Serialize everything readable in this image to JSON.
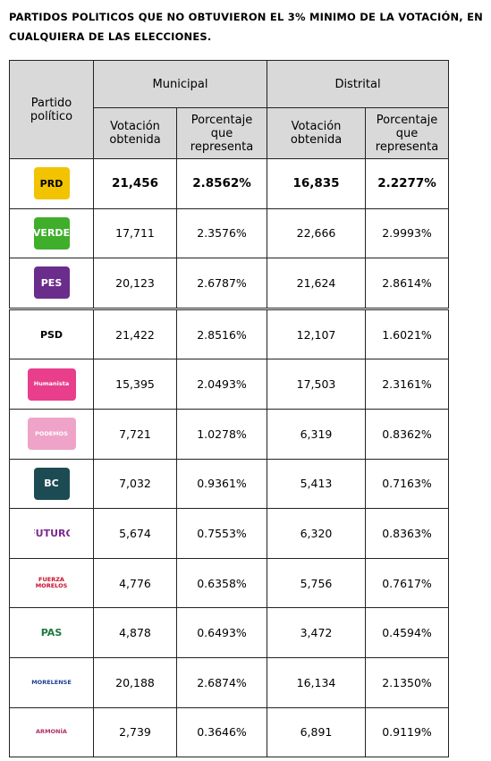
{
  "header": {
    "title": "PARTIDOS POLITICOS QUE NO OBTUVIERON EL 3% MINIMO DE LA VOTACIÓN, EN CUALQUIERA DE LAS ELECCIONES."
  },
  "table": {
    "party_header": "Partido político",
    "groups": [
      {
        "label": "Municipal",
        "sub": [
          "Votación obtenida",
          "Porcentaje que representa"
        ]
      },
      {
        "label": "Distrital",
        "sub": [
          "Votación obtenida",
          "Porcentaje que representa"
        ]
      }
    ],
    "rows": [
      {
        "logo": {
          "text": "PRD",
          "bg": "#f2c300",
          "fg": "#000000"
        },
        "emphasis": true,
        "cells": [
          "21,456",
          "2.8562%",
          "16,835",
          "2.2277%"
        ]
      },
      {
        "logo": {
          "text": "VERDE",
          "bg": "#3fae2a",
          "fg": "#ffffff"
        },
        "cells": [
          "17,711",
          "2.3576%",
          "22,666",
          "2.9993%"
        ]
      },
      {
        "logo": {
          "text": "PES",
          "bg": "#6b2d8c",
          "fg": "#ffffff"
        },
        "cells": [
          "20,123",
          "2.6787%",
          "21,624",
          "2.8614%"
        ]
      },
      {
        "logo": {
          "text": "PSD",
          "bg": "#ffffff",
          "fg": "#000000"
        },
        "cells": [
          "21,422",
          "2.8516%",
          "12,107",
          "1.6021%"
        ]
      },
      {
        "logo": {
          "text": "Humanista",
          "bg": "#e83e8c",
          "fg": "#ffffff"
        },
        "cells": [
          "15,395",
          "2.0493%",
          "17,503",
          "2.3161%"
        ]
      },
      {
        "logo": {
          "text": "PODEMOS",
          "bg": "#f0a3c8",
          "fg": "#ffffff"
        },
        "cells": [
          "7,721",
          "1.0278%",
          "6,319",
          "0.8362%"
        ]
      },
      {
        "logo": {
          "text": "BC",
          "bg": "#1d4b53",
          "fg": "#ffffff"
        },
        "cells": [
          "7,032",
          "0.9361%",
          "5,413",
          "0.7163%"
        ]
      },
      {
        "logo": {
          "text": "FUTURO",
          "bg": "#ffffff",
          "fg": "#7a2c8f"
        },
        "cells": [
          "5,674",
          "0.7553%",
          "6,320",
          "0.8363%"
        ]
      },
      {
        "logo": {
          "text": "FUERZA MORELOS",
          "bg": "#ffffff",
          "fg": "#c8102e"
        },
        "cells": [
          "4,776",
          "0.6358%",
          "5,756",
          "0.7617%"
        ]
      },
      {
        "logo": {
          "text": "PAS",
          "bg": "#ffffff",
          "fg": "#1c7a3e"
        },
        "cells": [
          "4,878",
          "0.6493%",
          "3,472",
          "0.4594%"
        ]
      },
      {
        "logo": {
          "text": "MORELENSE",
          "bg": "#ffffff",
          "fg": "#1f3f8f"
        },
        "cells": [
          "20,188",
          "2.6874%",
          "16,134",
          "2.1350%"
        ]
      },
      {
        "logo": {
          "text": "ARMONÍA",
          "bg": "#ffffff",
          "fg": "#b0306a"
        },
        "cells": [
          "2,739",
          "0.3646%",
          "6,891",
          "0.9119%"
        ]
      }
    ]
  }
}
